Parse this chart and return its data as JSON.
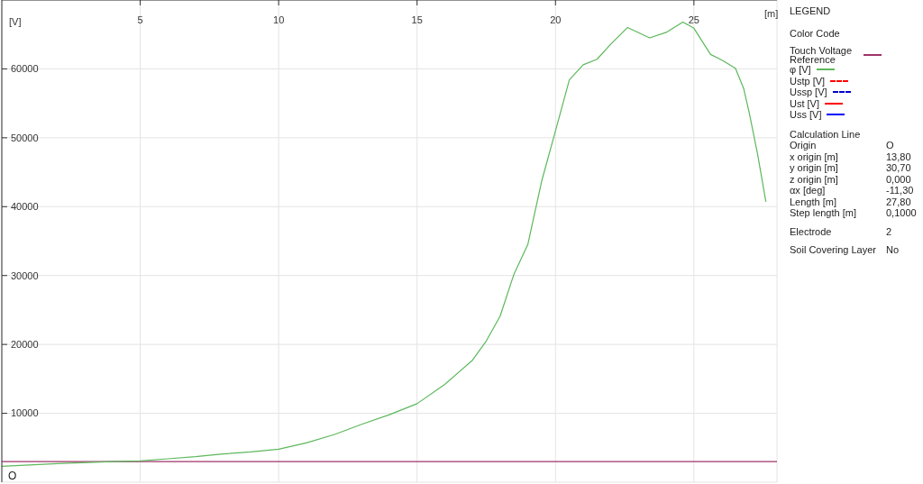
{
  "chart_data": {
    "type": "line",
    "xlabel": "[m]",
    "ylabel": "[V]",
    "legend_title": "LEGEND",
    "x": [
      0,
      2,
      4,
      5,
      6,
      7,
      8,
      9,
      10,
      11,
      12,
      13,
      14,
      15,
      16,
      17,
      17.5,
      18,
      18.5,
      19,
      19.5,
      20,
      20.5,
      21,
      21.5,
      22,
      22.6,
      23.4,
      24,
      24.6,
      25,
      25.6,
      26,
      26.5,
      26.8,
      27,
      27.3,
      27.6
    ],
    "series": [
      {
        "name": "φ [V]",
        "color": "#5cb85c",
        "values": [
          2300,
          2700,
          3000,
          3100,
          3400,
          3700,
          4100,
          4400,
          4800,
          5700,
          6900,
          8400,
          9800,
          11400,
          14200,
          17700,
          20500,
          24100,
          30200,
          34500,
          43700,
          51000,
          58400,
          60600,
          61400,
          63600,
          66000,
          64500,
          65300,
          66800,
          65900,
          62100,
          61300,
          60100,
          57100,
          53600,
          47600,
          40700
        ]
      },
      {
        "name": "Ustp [V]",
        "color": "#ff0000",
        "line_style": "dashed",
        "values": [
          null,
          null,
          null,
          null,
          null,
          null,
          null,
          null,
          null,
          null,
          null,
          null,
          null,
          null,
          null,
          null,
          null,
          null,
          null,
          null,
          null,
          null,
          null,
          null,
          null,
          null,
          null,
          null,
          null,
          null,
          null,
          null,
          null,
          null,
          null,
          null,
          null,
          null
        ]
      },
      {
        "name": "Ussp [V]",
        "color": "#0000cc",
        "line_style": "dashed",
        "values": [
          null,
          null,
          null,
          null,
          null,
          null,
          null,
          null,
          null,
          null,
          null,
          null,
          null,
          null,
          null,
          null,
          null,
          null,
          null,
          null,
          null,
          null,
          null,
          null,
          null,
          null,
          null,
          null,
          null,
          null,
          null,
          null,
          null,
          null,
          null,
          null,
          null,
          null
        ]
      },
      {
        "name": "Ust [V]",
        "color": "#ff0000",
        "values": [
          null,
          null,
          null,
          null,
          null,
          null,
          null,
          null,
          null,
          null,
          null,
          null,
          null,
          null,
          null,
          null,
          null,
          null,
          null,
          null,
          null,
          null,
          null,
          null,
          null,
          null,
          null,
          null,
          null,
          null,
          null,
          null,
          null,
          null,
          null,
          null,
          null,
          null
        ]
      },
      {
        "name": "Uss [V]",
        "color": "#0000ff",
        "values": [
          null,
          null,
          null,
          null,
          null,
          null,
          null,
          null,
          null,
          null,
          null,
          null,
          null,
          null,
          null,
          null,
          null,
          null,
          null,
          null,
          null,
          null,
          null,
          null,
          null,
          null,
          null,
          null,
          null,
          null,
          null,
          null,
          null,
          null,
          null,
          null,
          null,
          null
        ]
      }
    ],
    "ref_lines": [
      {
        "axis": "y",
        "value": 3000,
        "label": "Touch Voltage Reference",
        "color": "#a0336a"
      }
    ],
    "xlim": [
      0,
      28
    ],
    "xticks": [
      5,
      10,
      15,
      20,
      25
    ],
    "ylim": [
      0,
      70000
    ],
    "yticks": [
      10000,
      20000,
      30000,
      40000,
      50000,
      60000
    ],
    "grid": true,
    "legend": "right",
    "marker": "none",
    "line_style": "solid",
    "annotations": [
      "O",
      "Color Code",
      "Calculation Line",
      "Origin",
      "O",
      "x origin [m]",
      "13,80",
      "y origin [m]",
      "30,70",
      "z origin [m]",
      "0,000",
      "αx [deg]",
      "-11,30",
      "Length [m]",
      "27,80",
      "Step length [m]",
      "0,1000",
      "Electrode",
      "2",
      "Soil Covering Layer",
      "No"
    ]
  }
}
